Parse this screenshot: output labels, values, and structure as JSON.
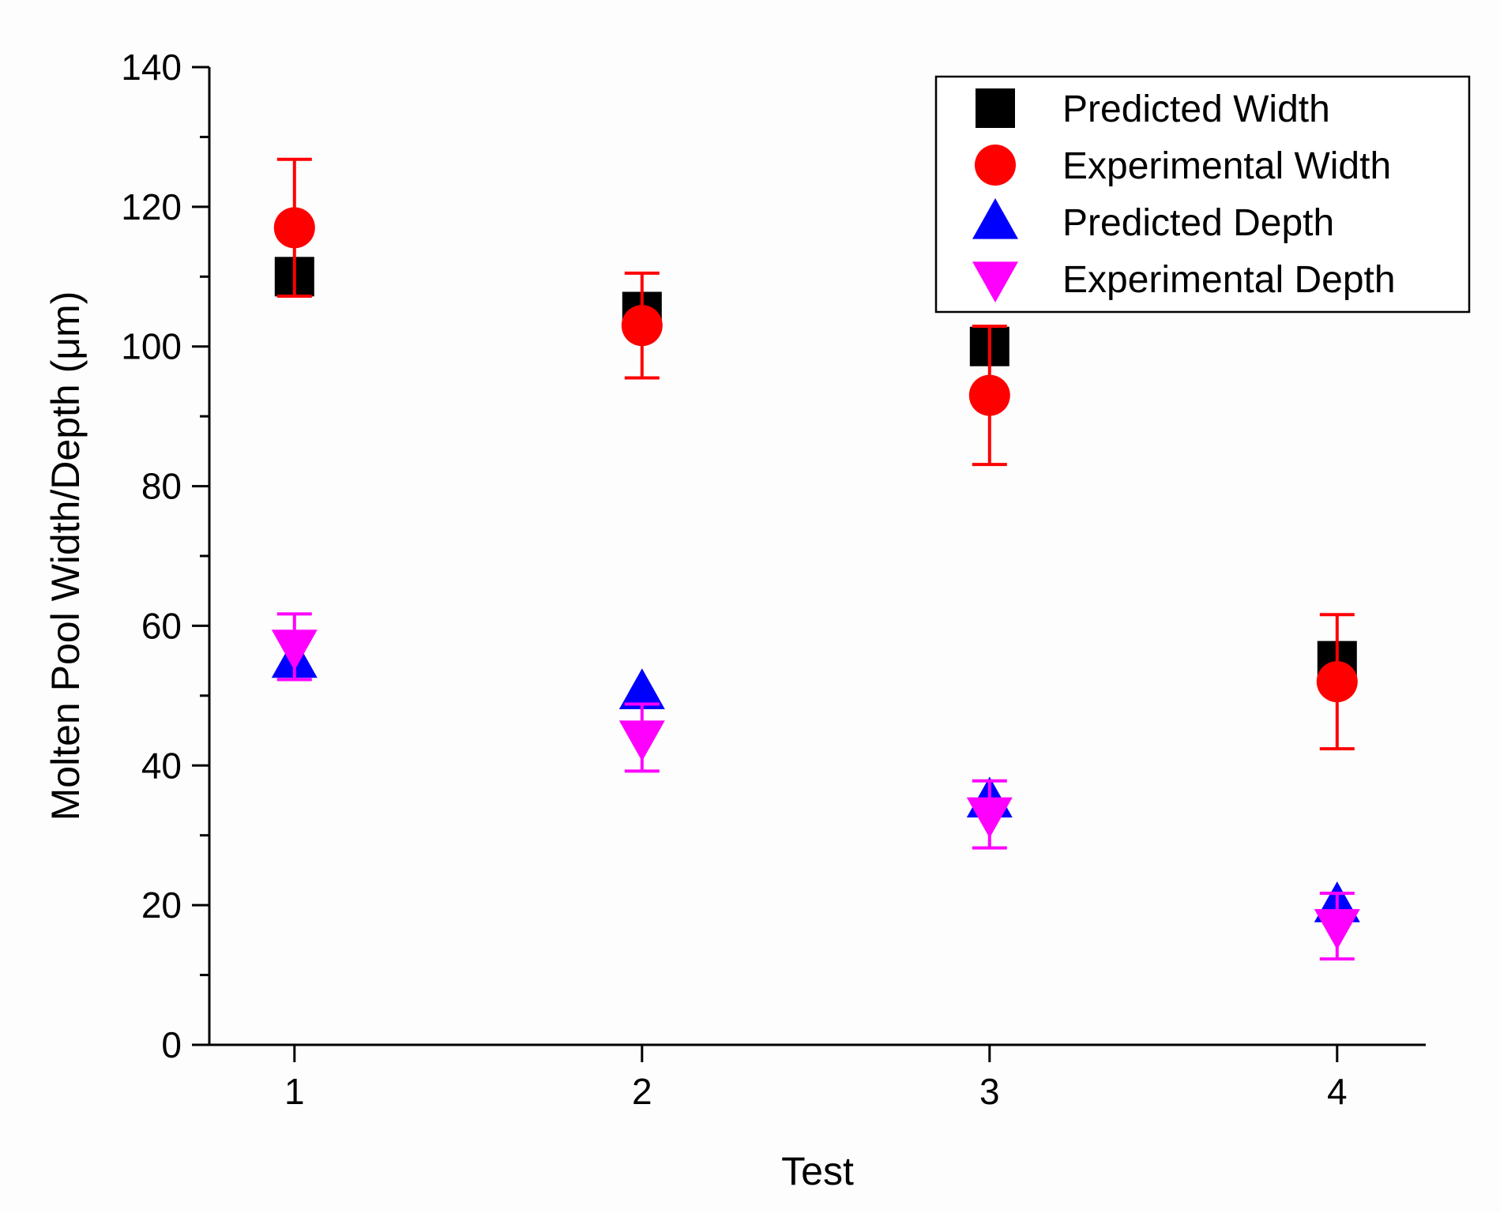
{
  "chart_data": {
    "type": "scatter",
    "xlabel": "Test",
    "ylabel": "Molten Pool Width/Depth (μm)",
    "categories": [
      "1",
      "2",
      "3",
      "4"
    ],
    "x": [
      1,
      2,
      3,
      4
    ],
    "ylim": [
      0,
      140
    ],
    "yticks": [
      "0",
      "20",
      "40",
      "60",
      "80",
      "100",
      "120",
      "140"
    ],
    "grid": false,
    "legend_position": "top-right",
    "series": [
      {
        "name": "Predicted Width",
        "marker": "square",
        "color": "#000000",
        "values": [
          110,
          105,
          100,
          55
        ]
      },
      {
        "name": "Experimental Width",
        "marker": "circle",
        "color": "#ff0000",
        "values": [
          117,
          103,
          93,
          52
        ],
        "errors": [
          9.8,
          7.5,
          9.9,
          9.6
        ]
      },
      {
        "name": "Predicted Depth",
        "marker": "triangle-up",
        "color": "#0000ff",
        "values": [
          55,
          50.5,
          35,
          20
        ]
      },
      {
        "name": "Experimental Depth",
        "marker": "triangle-down",
        "color": "#ff00ff",
        "values": [
          57,
          44,
          33,
          17
        ],
        "errors": [
          4.7,
          4.8,
          4.8,
          4.7
        ]
      }
    ]
  }
}
